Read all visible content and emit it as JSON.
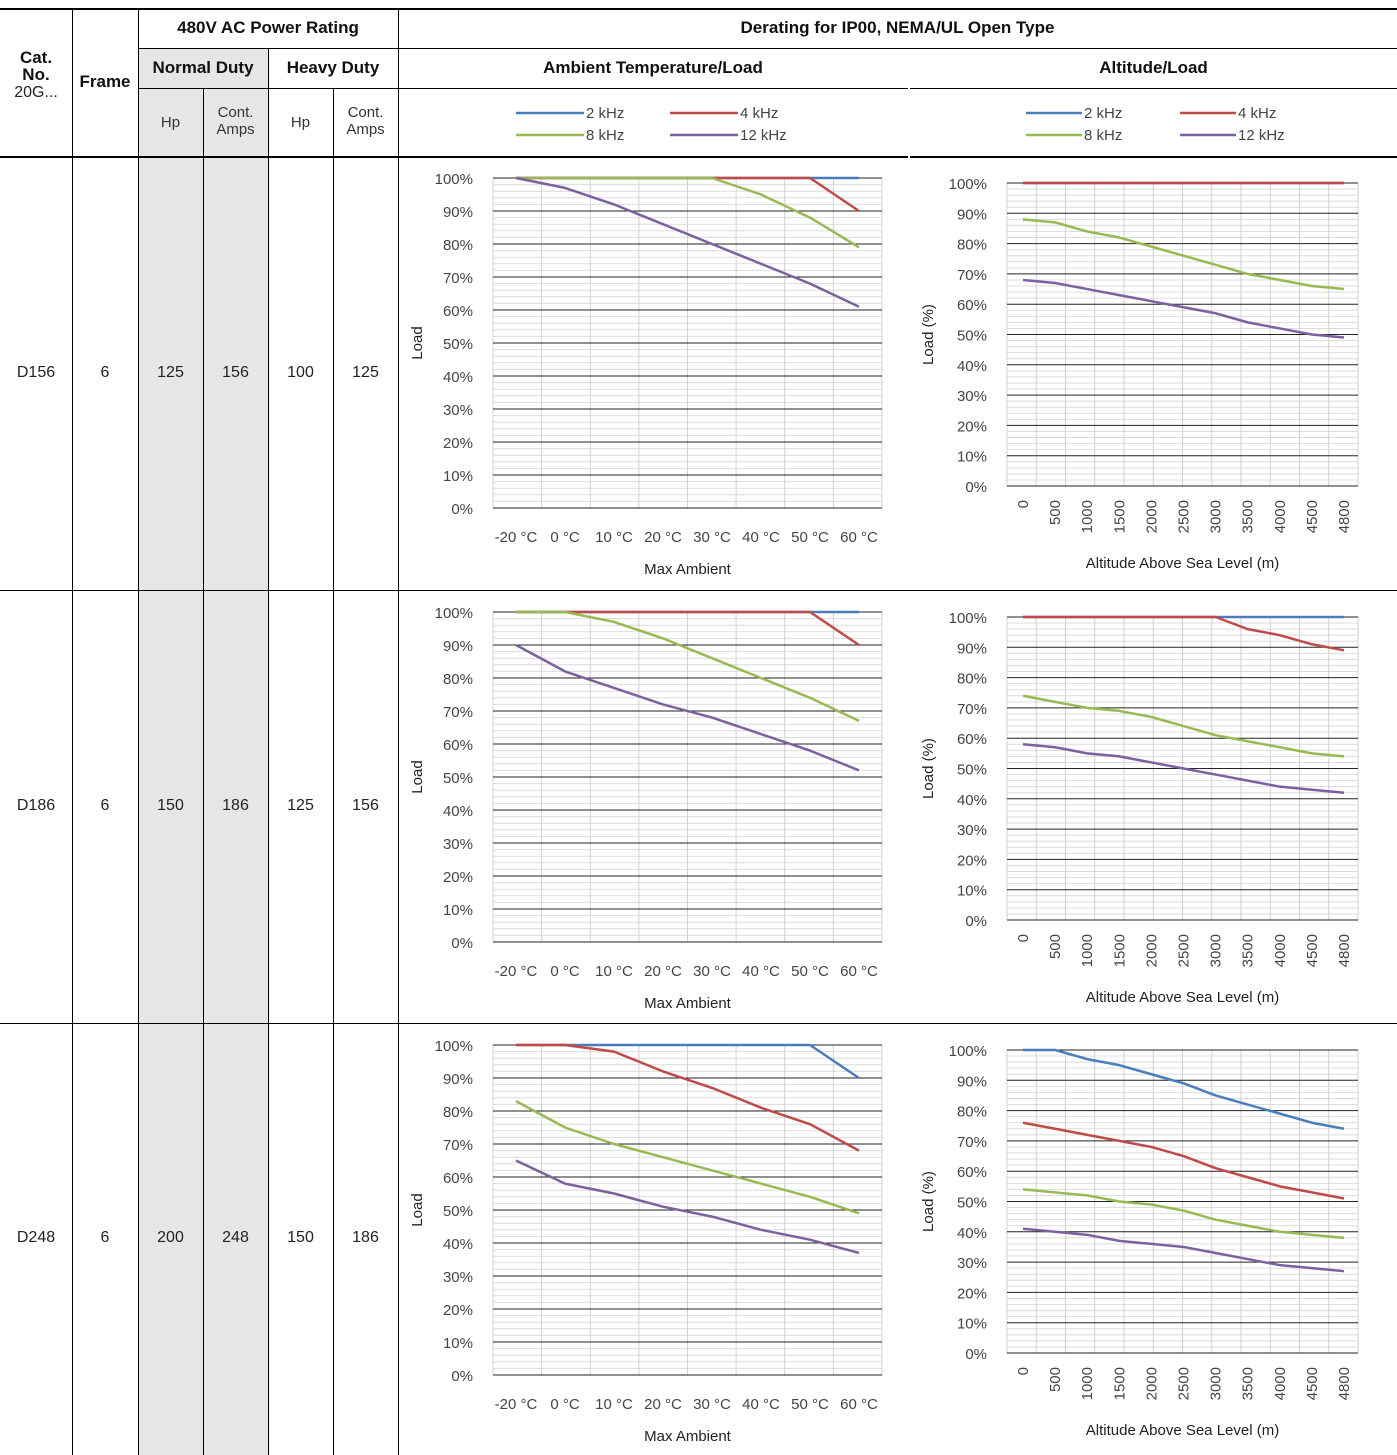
{
  "header": {
    "cat_no": "Cat.\nNo.",
    "cat_prefix": "20G...",
    "frame": "Frame",
    "power_rating": "480V AC Power Rating",
    "derating": "Derating for IP00, NEMA/UL Open Type",
    "normal_duty": "Normal Duty",
    "heavy_duty": "Heavy Duty",
    "ambient_load": "Ambient Temperature/Load",
    "altitude_load": "Altitude/Load",
    "hp": "Hp",
    "cont_amps": "Cont. Amps"
  },
  "legend": {
    "items": [
      {
        "label": "2 kHz",
        "color": "#4a7ebb"
      },
      {
        "label": "4 kHz",
        "color": "#be4b48"
      },
      {
        "label": "8 kHz",
        "color": "#98b954"
      },
      {
        "label": "12 kHz",
        "color": "#7d60a0"
      }
    ]
  },
  "rows": [
    {
      "cat": "D156",
      "frame": "6",
      "nd_hp": "125",
      "nd_amps": "156",
      "hd_hp": "100",
      "hd_amps": "125"
    },
    {
      "cat": "D186",
      "frame": "6",
      "nd_hp": "150",
      "nd_amps": "186",
      "hd_hp": "125",
      "hd_amps": "156"
    },
    {
      "cat": "D248",
      "frame": "6",
      "nd_hp": "200",
      "nd_amps": "248",
      "hd_hp": "150",
      "hd_amps": "186"
    }
  ],
  "chart_data": [
    {
      "type": "line",
      "row": "D156",
      "kind": "ambient",
      "xlabel": "Max Ambient",
      "ylabel": "Load",
      "x": [
        "-20 °C",
        "0 °C",
        "10 °C",
        "20 °C",
        "30 °C",
        "40 °C",
        "50 °C",
        "60 °C"
      ],
      "ylim": [
        0,
        100
      ],
      "yticks": [
        "0%",
        "10%",
        "20%",
        "30%",
        "40%",
        "50%",
        "60%",
        "70%",
        "80%",
        "90%",
        "100%"
      ],
      "series": [
        {
          "name": "2 kHz",
          "color": "#4a7ebb",
          "values": [
            100,
            100,
            100,
            100,
            100,
            100,
            100,
            100
          ]
        },
        {
          "name": "4 kHz",
          "color": "#be4b48",
          "values": [
            100,
            100,
            100,
            100,
            100,
            100,
            100,
            90
          ]
        },
        {
          "name": "8 kHz",
          "color": "#98b954",
          "values": [
            100,
            100,
            100,
            100,
            100,
            95,
            88,
            79
          ]
        },
        {
          "name": "12 kHz",
          "color": "#7d60a0",
          "values": [
            100,
            97,
            92,
            86,
            80,
            74,
            68,
            61
          ]
        }
      ]
    },
    {
      "type": "line",
      "row": "D156",
      "kind": "altitude",
      "xlabel": "Altitude Above Sea Level (m)",
      "ylabel": "Load (%)",
      "x": [
        "0",
        "500",
        "1000",
        "1500",
        "2000",
        "2500",
        "3000",
        "3500",
        "4000",
        "4500",
        "4800"
      ],
      "ylim": [
        0,
        100
      ],
      "yticks": [
        "0%",
        "10%",
        "20%",
        "30%",
        "40%",
        "50%",
        "60%",
        "70%",
        "80%",
        "90%",
        "100%"
      ],
      "series": [
        {
          "name": "2 kHz",
          "color": "#4a7ebb",
          "values": [
            100,
            100,
            100,
            100,
            100,
            100,
            100,
            100,
            100,
            100,
            100
          ]
        },
        {
          "name": "4 kHz",
          "color": "#be4b48",
          "values": [
            100,
            100,
            100,
            100,
            100,
            100,
            100,
            100,
            100,
            100,
            100
          ]
        },
        {
          "name": "8 kHz",
          "color": "#98b954",
          "values": [
            88,
            87,
            84,
            82,
            79,
            76,
            73,
            70,
            68,
            66,
            65
          ]
        },
        {
          "name": "12 kHz",
          "color": "#7d60a0",
          "values": [
            68,
            67,
            65,
            63,
            61,
            59,
            57,
            54,
            52,
            50,
            49
          ]
        }
      ]
    },
    {
      "type": "line",
      "row": "D186",
      "kind": "ambient",
      "xlabel": "Max Ambient",
      "ylabel": "Load",
      "x": [
        "-20 °C",
        "0 °C",
        "10 °C",
        "20 °C",
        "30 °C",
        "40 °C",
        "50 °C",
        "60 °C"
      ],
      "ylim": [
        0,
        100
      ],
      "yticks": [
        "0%",
        "10%",
        "20%",
        "30%",
        "40%",
        "50%",
        "60%",
        "70%",
        "80%",
        "90%",
        "100%"
      ],
      "series": [
        {
          "name": "2 kHz",
          "color": "#4a7ebb",
          "values": [
            100,
            100,
            100,
            100,
            100,
            100,
            100,
            100
          ]
        },
        {
          "name": "4 kHz",
          "color": "#be4b48",
          "values": [
            100,
            100,
            100,
            100,
            100,
            100,
            100,
            90
          ]
        },
        {
          "name": "8 kHz",
          "color": "#98b954",
          "values": [
            100,
            100,
            97,
            92,
            86,
            80,
            74,
            67
          ]
        },
        {
          "name": "12 kHz",
          "color": "#7d60a0",
          "values": [
            90,
            82,
            77,
            72,
            68,
            63,
            58,
            52
          ]
        }
      ]
    },
    {
      "type": "line",
      "row": "D186",
      "kind": "altitude",
      "xlabel": "Altitude Above Sea Level (m)",
      "ylabel": "Load (%)",
      "x": [
        "0",
        "500",
        "1000",
        "1500",
        "2000",
        "2500",
        "3000",
        "3500",
        "4000",
        "4500",
        "4800"
      ],
      "ylim": [
        0,
        100
      ],
      "yticks": [
        "0%",
        "10%",
        "20%",
        "30%",
        "40%",
        "50%",
        "60%",
        "70%",
        "80%",
        "90%",
        "100%"
      ],
      "series": [
        {
          "name": "2 kHz",
          "color": "#4a7ebb",
          "values": [
            100,
            100,
            100,
            100,
            100,
            100,
            100,
            100,
            100,
            100,
            100
          ]
        },
        {
          "name": "4 kHz",
          "color": "#be4b48",
          "values": [
            100,
            100,
            100,
            100,
            100,
            100,
            100,
            96,
            94,
            91,
            89
          ]
        },
        {
          "name": "8 kHz",
          "color": "#98b954",
          "values": [
            74,
            72,
            70,
            69,
            67,
            64,
            61,
            59,
            57,
            55,
            54
          ]
        },
        {
          "name": "12 kHz",
          "color": "#7d60a0",
          "values": [
            58,
            57,
            55,
            54,
            52,
            50,
            48,
            46,
            44,
            43,
            42
          ]
        }
      ]
    },
    {
      "type": "line",
      "row": "D248",
      "kind": "ambient",
      "xlabel": "Max Ambient",
      "ylabel": "Load",
      "x": [
        "-20 °C",
        "0 °C",
        "10 °C",
        "20 °C",
        "30 °C",
        "40 °C",
        "50 °C",
        "60 °C"
      ],
      "ylim": [
        0,
        100
      ],
      "yticks": [
        "0%",
        "10%",
        "20%",
        "30%",
        "40%",
        "50%",
        "60%",
        "70%",
        "80%",
        "90%",
        "100%"
      ],
      "series": [
        {
          "name": "2 kHz",
          "color": "#4a7ebb",
          "values": [
            100,
            100,
            100,
            100,
            100,
            100,
            100,
            90
          ]
        },
        {
          "name": "4 kHz",
          "color": "#be4b48",
          "values": [
            100,
            100,
            98,
            92,
            87,
            81,
            76,
            68
          ]
        },
        {
          "name": "8 kHz",
          "color": "#98b954",
          "values": [
            83,
            75,
            70,
            66,
            62,
            58,
            54,
            49
          ]
        },
        {
          "name": "12 kHz",
          "color": "#7d60a0",
          "values": [
            65,
            58,
            55,
            51,
            48,
            44,
            41,
            37
          ]
        }
      ]
    },
    {
      "type": "line",
      "row": "D248",
      "kind": "altitude",
      "xlabel": "Altitude Above Sea Level (m)",
      "ylabel": "Load (%)",
      "x": [
        "0",
        "500",
        "1000",
        "1500",
        "2000",
        "2500",
        "3000",
        "3500",
        "4000",
        "4500",
        "4800"
      ],
      "ylim": [
        0,
        100
      ],
      "yticks": [
        "0%",
        "10%",
        "20%",
        "30%",
        "40%",
        "50%",
        "60%",
        "70%",
        "80%",
        "90%",
        "100%"
      ],
      "series": [
        {
          "name": "2 kHz",
          "color": "#4a7ebb",
          "values": [
            100,
            100,
            97,
            95,
            92,
            89,
            85,
            82,
            79,
            76,
            74
          ]
        },
        {
          "name": "4 kHz",
          "color": "#be4b48",
          "values": [
            76,
            74,
            72,
            70,
            68,
            65,
            61,
            58,
            55,
            53,
            51
          ]
        },
        {
          "name": "8 kHz",
          "color": "#98b954",
          "values": [
            54,
            53,
            52,
            50,
            49,
            47,
            44,
            42,
            40,
            39,
            38
          ]
        },
        {
          "name": "12 kHz",
          "color": "#7d60a0",
          "values": [
            41,
            40,
            39,
            37,
            36,
            35,
            33,
            31,
            29,
            28,
            27
          ]
        }
      ]
    }
  ]
}
